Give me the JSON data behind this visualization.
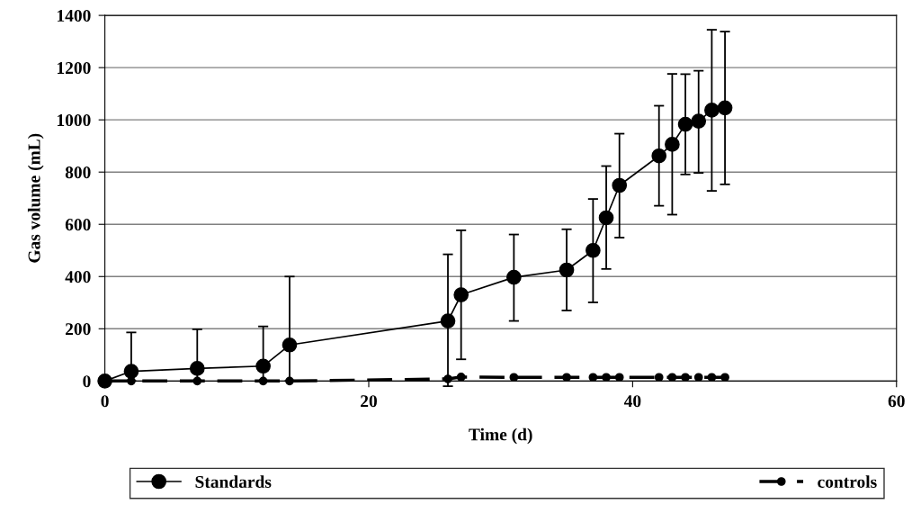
{
  "chart_data": {
    "type": "line",
    "xlabel": "Time (d)",
    "ylabel": "Gas volume (mL)",
    "xlim": [
      0,
      60
    ],
    "xticks": [
      0,
      20,
      40,
      60
    ],
    "ylim": [
      0,
      1400
    ],
    "yticks": [
      0,
      200,
      400,
      600,
      800,
      1000,
      1200,
      1400
    ],
    "grid": "y",
    "legend": "bottom",
    "marker": "circle",
    "x": [
      0,
      2,
      7,
      12,
      14,
      26,
      27,
      31,
      35,
      37,
      38,
      39,
      42,
      43,
      44,
      45,
      46,
      47
    ],
    "series": [
      {
        "name": "Standards",
        "color": "#000000",
        "line_style": "solid",
        "values": [
          0,
          37,
          48,
          57,
          138,
          230,
          330,
          397,
          425,
          500,
          625,
          749,
          862,
          906,
          983,
          995,
          1037,
          1046
        ],
        "errors": [
          null,
          [
            0,
            186
          ],
          [
            0,
            198
          ],
          [
            0,
            209
          ],
          [
            0,
            400
          ],
          [
            -20,
            485
          ],
          [
            83,
            577
          ],
          [
            230,
            561
          ],
          [
            270,
            581
          ],
          [
            301,
            697
          ],
          [
            429,
            823
          ],
          [
            549,
            947
          ],
          [
            671,
            1054
          ],
          [
            637,
            1176
          ],
          [
            791,
            1175
          ],
          [
            797,
            1188
          ],
          [
            728,
            1345
          ],
          [
            753,
            1338
          ]
        ]
      },
      {
        "name": "controls",
        "color": "#000000",
        "line_style": "dashed",
        "values": [
          0,
          0,
          0,
          0,
          0,
          8,
          15,
          14,
          14,
          14,
          14,
          14,
          14,
          14,
          14,
          14,
          14,
          14
        ]
      }
    ]
  }
}
